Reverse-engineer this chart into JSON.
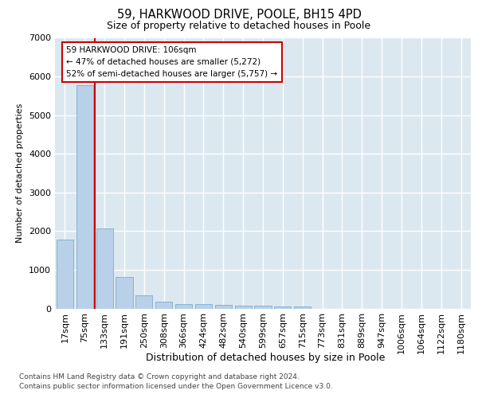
{
  "title_line1": "59, HARKWOOD DRIVE, POOLE, BH15 4PD",
  "title_line2": "Size of property relative to detached houses in Poole",
  "xlabel": "Distribution of detached houses by size in Poole",
  "ylabel": "Number of detached properties",
  "categories": [
    "17sqm",
    "75sqm",
    "133sqm",
    "191sqm",
    "250sqm",
    "308sqm",
    "366sqm",
    "424sqm",
    "482sqm",
    "540sqm",
    "599sqm",
    "657sqm",
    "715sqm",
    "773sqm",
    "831sqm",
    "889sqm",
    "947sqm",
    "1006sqm",
    "1064sqm",
    "1122sqm",
    "1180sqm"
  ],
  "values": [
    1780,
    5780,
    2060,
    820,
    340,
    185,
    120,
    105,
    95,
    80,
    75,
    60,
    55,
    0,
    0,
    0,
    0,
    0,
    0,
    0,
    0
  ],
  "bar_color": "#b8d0e8",
  "bar_edge_color": "#7aaecc",
  "vline_color": "#cc0000",
  "annotation_line1": "59 HARKWOOD DRIVE: 106sqm",
  "annotation_line2": "← 47% of detached houses are smaller (5,272)",
  "annotation_line3": "52% of semi-detached houses are larger (5,757) →",
  "ylim": [
    0,
    7000
  ],
  "yticks": [
    0,
    1000,
    2000,
    3000,
    4000,
    5000,
    6000,
    7000
  ],
  "footer_line1": "Contains HM Land Registry data © Crown copyright and database right 2024.",
  "footer_line2": "Contains public sector information licensed under the Open Government Licence v3.0.",
  "bg_color": "#dce8f0"
}
